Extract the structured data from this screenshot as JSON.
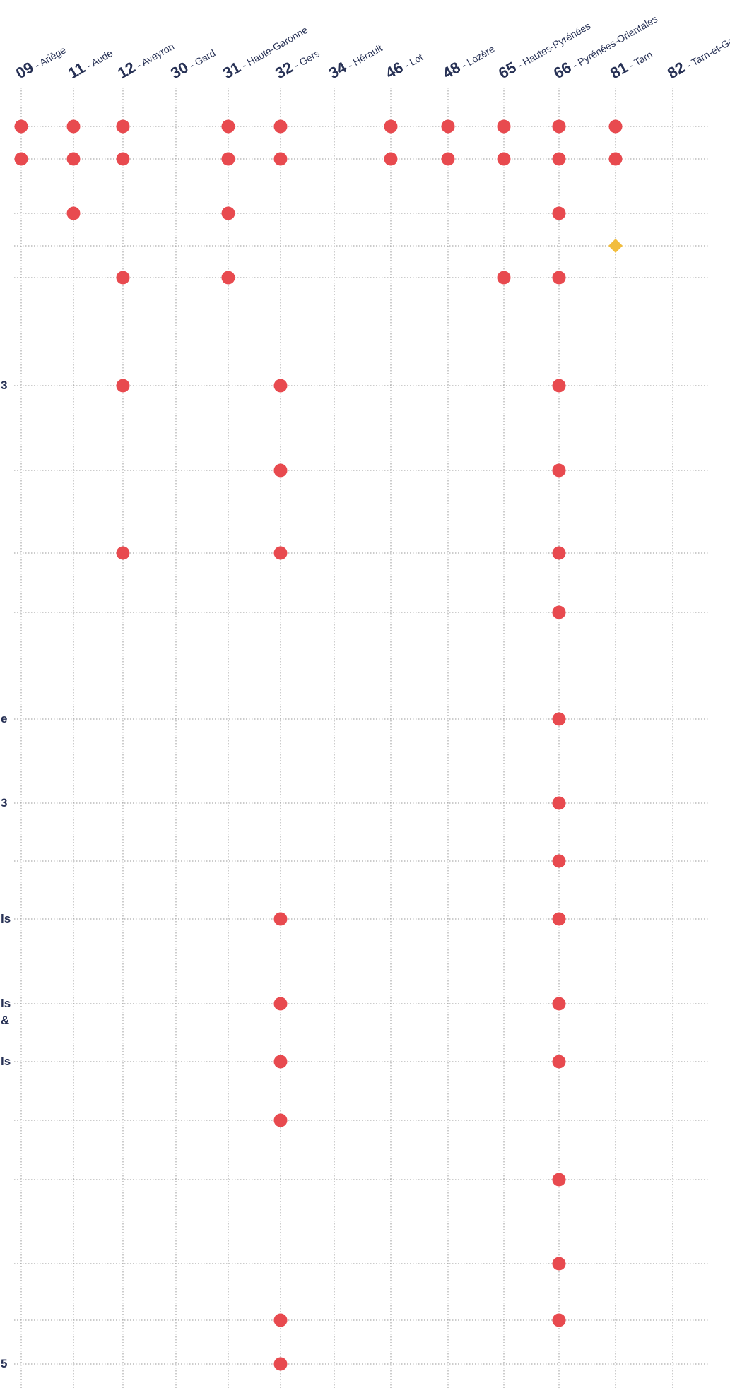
{
  "chart_data": {
    "type": "scatter",
    "columns": [
      {
        "code": "09",
        "name": "Ariège"
      },
      {
        "code": "11",
        "name": "Aude"
      },
      {
        "code": "12",
        "name": "Aveyron"
      },
      {
        "code": "30",
        "name": "Gard"
      },
      {
        "code": "31",
        "name": "Haute-Garonne"
      },
      {
        "code": "32",
        "name": "Gers"
      },
      {
        "code": "34",
        "name": "Hérault"
      },
      {
        "code": "46",
        "name": "Lot"
      },
      {
        "code": "48",
        "name": "Lozère"
      },
      {
        "code": "65",
        "name": "Hautes-Pyrénées"
      },
      {
        "code": "66",
        "name": "Pyrénées-Orientales"
      },
      {
        "code": "81",
        "name": "Tarn"
      },
      {
        "code": "82",
        "name": "Tarn-et-Garonne"
      }
    ],
    "row_label_fragments": [
      {
        "row": 5,
        "text": "3"
      },
      {
        "row": 9,
        "text": "e"
      },
      {
        "row": 10,
        "text": "3"
      },
      {
        "row": 12,
        "text": "ls"
      },
      {
        "row": 13,
        "text": "ls"
      },
      {
        "row": 13,
        "text": "&"
      },
      {
        "row": 14,
        "text": "ls"
      },
      {
        "row": 19,
        "text": "5"
      }
    ],
    "row_count": 21,
    "series": [
      {
        "marker": "circle",
        "color": "#e84a4f",
        "points": [
          [
            0,
            0
          ],
          [
            1,
            0
          ],
          [
            2,
            0
          ],
          [
            4,
            0
          ],
          [
            5,
            0
          ],
          [
            7,
            0
          ],
          [
            8,
            0
          ],
          [
            9,
            0
          ],
          [
            10,
            0
          ],
          [
            11,
            0
          ],
          [
            0,
            1
          ],
          [
            1,
            1
          ],
          [
            2,
            1
          ],
          [
            4,
            1
          ],
          [
            5,
            1
          ],
          [
            7,
            1
          ],
          [
            8,
            1
          ],
          [
            9,
            1
          ],
          [
            10,
            1
          ],
          [
            11,
            1
          ],
          [
            1,
            2
          ],
          [
            4,
            2
          ],
          [
            10,
            2
          ],
          [
            2,
            4
          ],
          [
            4,
            4
          ],
          [
            9,
            4
          ],
          [
            10,
            4
          ],
          [
            2,
            5
          ],
          [
            5,
            5
          ],
          [
            10,
            5
          ],
          [
            5,
            6
          ],
          [
            10,
            6
          ],
          [
            2,
            7
          ],
          [
            5,
            7
          ],
          [
            10,
            7
          ],
          [
            10,
            8
          ],
          [
            10,
            9
          ],
          [
            10,
            10
          ],
          [
            10,
            11
          ],
          [
            5,
            12
          ],
          [
            10,
            12
          ],
          [
            5,
            13
          ],
          [
            10,
            13
          ],
          [
            5,
            14
          ],
          [
            10,
            14
          ],
          [
            5,
            15
          ],
          [
            10,
            16
          ],
          [
            10,
            17
          ],
          [
            5,
            18
          ],
          [
            10,
            18
          ],
          [
            5,
            19
          ]
        ]
      },
      {
        "marker": "diamond",
        "color": "#f2bd3d",
        "points": [
          [
            11,
            3
          ]
        ]
      }
    ],
    "grid": true,
    "grid_style": "dotted",
    "colors": {
      "text": "#273155",
      "grid": "#9a9a9a"
    }
  }
}
